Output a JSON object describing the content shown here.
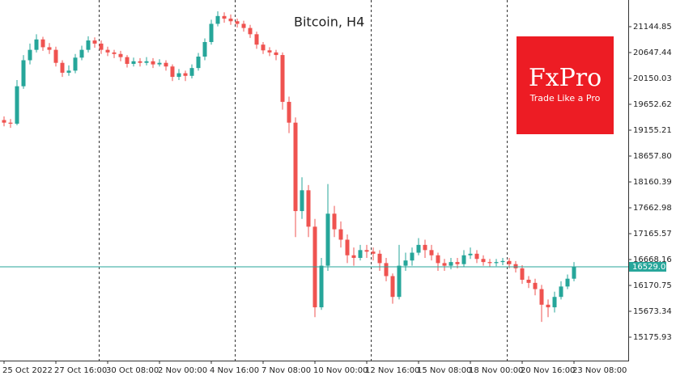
{
  "chart_data": {
    "type": "candlestick",
    "title": "Bitcoin, H4",
    "categories": [
      "25 Oct 2022",
      null,
      null,
      null,
      null,
      null,
      null,
      null,
      "27 Oct 16:00",
      null,
      null,
      null,
      null,
      null,
      null,
      null,
      "30 Oct 08:00",
      null,
      null,
      null,
      null,
      null,
      null,
      null,
      "2 Nov 00:00",
      null,
      null,
      null,
      null,
      null,
      null,
      null,
      "4 Nov 16:00",
      null,
      null,
      null,
      null,
      null,
      null,
      null,
      "7 Nov 08:00",
      null,
      null,
      null,
      null,
      null,
      null,
      null,
      "10 Nov 00:00",
      null,
      null,
      null,
      null,
      null,
      null,
      null,
      "12 Nov 16:00",
      null,
      null,
      null,
      null,
      null,
      null,
      null,
      "15 Nov 08:00",
      null,
      null,
      null,
      null,
      null,
      null,
      null,
      "18 Nov 00:00",
      null,
      null,
      null,
      null,
      null,
      null,
      null,
      "20 Nov 16:00",
      null,
      null,
      null,
      null,
      null,
      null,
      null,
      "23 Nov 08:00"
    ],
    "open": [
      19350,
      19300,
      19280,
      20000,
      20500,
      20700,
      20900,
      20750,
      20700,
      20450,
      20260,
      20300,
      20550,
      20700,
      20880,
      20820,
      20700,
      20650,
      20620,
      20560,
      20430,
      20480,
      20450,
      20480,
      20420,
      20450,
      20380,
      20180,
      20250,
      20200,
      20350,
      20570,
      20850,
      21200,
      21350,
      21300,
      21250,
      21200,
      21120,
      21000,
      20800,
      20690,
      20650,
      20600,
      19700,
      19300,
      17600,
      18000,
      17300,
      15750,
      16550,
      17550,
      17250,
      17050,
      16750,
      16700,
      16850,
      16820,
      16780,
      16600,
      16350,
      15950,
      16550,
      16650,
      16800,
      16950,
      16850,
      16750,
      16600,
      16550,
      16620,
      16580,
      16750,
      16780,
      16680,
      16620,
      16600,
      16620,
      16640,
      16580,
      16500,
      16280,
      16220,
      16100,
      15800,
      15750,
      15950,
      16150,
      16300
    ],
    "high": [
      19420,
      19370,
      20120,
      20600,
      20820,
      21000,
      20950,
      20830,
      20760,
      20500,
      20400,
      20620,
      20780,
      20960,
      20940,
      20880,
      20760,
      20700,
      20680,
      20600,
      20550,
      20540,
      20560,
      20540,
      20520,
      20500,
      20420,
      20330,
      20300,
      20420,
      20640,
      20920,
      21280,
      21440,
      21420,
      21380,
      21300,
      21260,
      21180,
      21050,
      20850,
      20750,
      20700,
      20650,
      19800,
      19400,
      18250,
      18100,
      17450,
      16700,
      18120,
      17700,
      17400,
      17150,
      16900,
      16950,
      16950,
      16900,
      16850,
      16700,
      16400,
      16950,
      16800,
      16900,
      17080,
      17050,
      16950,
      16800,
      16680,
      16700,
      16700,
      16850,
      16900,
      16850,
      16750,
      16680,
      16680,
      16700,
      16700,
      16640,
      16560,
      16350,
      16300,
      16180,
      15900,
      16050,
      16250,
      16380,
      16620
    ],
    "low": [
      19230,
      19200,
      19250,
      19950,
      20420,
      20650,
      20680,
      20620,
      20380,
      20180,
      20200,
      20250,
      20500,
      20650,
      20740,
      20620,
      20580,
      20540,
      20480,
      20360,
      20380,
      20380,
      20400,
      20350,
      20380,
      20300,
      20100,
      20120,
      20100,
      20150,
      20300,
      20500,
      20800,
      21150,
      21220,
      21180,
      21130,
      21050,
      20930,
      20720,
      20620,
      20580,
      20500,
      19550,
      19100,
      17100,
      17450,
      17100,
      15560,
      15700,
      16450,
      17100,
      16900,
      16600,
      16550,
      16650,
      16700,
      16650,
      16450,
      16250,
      15820,
      15900,
      16450,
      16550,
      16750,
      16700,
      16650,
      16450,
      16450,
      16480,
      16500,
      16520,
      16680,
      16600,
      16550,
      16520,
      16540,
      16560,
      16500,
      16420,
      16200,
      16120,
      15980,
      15470,
      15560,
      15650,
      15900,
      16100,
      16250
    ],
    "close": [
      19300,
      19280,
      20000,
      20500,
      20700,
      20900,
      20750,
      20700,
      20450,
      20260,
      20300,
      20550,
      20700,
      20880,
      20820,
      20700,
      20650,
      20620,
      20560,
      20430,
      20480,
      20450,
      20480,
      20420,
      20450,
      20380,
      20180,
      20250,
      20200,
      20350,
      20570,
      20850,
      21200,
      21350,
      21300,
      21250,
      21200,
      21120,
      21000,
      20800,
      20690,
      20650,
      20600,
      19700,
      19300,
      17600,
      18000,
      17300,
      15750,
      16550,
      17550,
      17250,
      17050,
      16750,
      16700,
      16850,
      16820,
      16780,
      16600,
      16350,
      15950,
      16550,
      16650,
      16800,
      16950,
      16850,
      16750,
      16600,
      16550,
      16620,
      16580,
      16750,
      16780,
      16680,
      16620,
      16600,
      16620,
      16640,
      16580,
      16500,
      16280,
      16220,
      16100,
      15800,
      15750,
      15950,
      16150,
      16300,
      16530
    ],
    "up_color": "#26a69a",
    "down_color": "#ef5350",
    "current_price": 16529.06,
    "ylim": [
      14741,
      21658
    ],
    "yticks": [
      15175.93,
      15673.34,
      16170.75,
      16668.16,
      17165.57,
      17662.98,
      18160.39,
      {
        "value": 18657.8,
        "label": "18657.80"
      },
      19155.21,
      19652.62,
      20150.03,
      20647.44,
      21144.85
    ]
  },
  "logo": {
    "name": "FxPro",
    "tagline": "Trade Like a Pro"
  }
}
